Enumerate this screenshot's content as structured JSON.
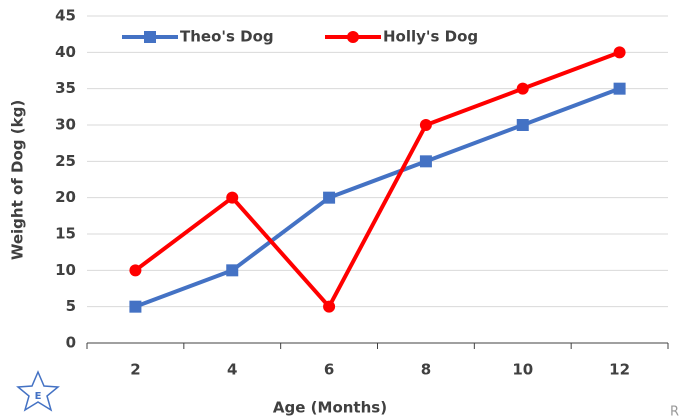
{
  "chart_data": {
    "type": "line",
    "x_label": "Age (Months)",
    "y_label": "Weight of Dog (kg)",
    "categories": [
      "2",
      "4",
      "6",
      "8",
      "10",
      "12"
    ],
    "series": [
      {
        "name": "Theo's Dog",
        "color": "#4472c4",
        "marker": "square",
        "values": [
          5,
          10,
          20,
          25,
          30,
          35
        ]
      },
      {
        "name": "Holly's Dog",
        "color": "#ff0000",
        "marker": "circle",
        "values": [
          10,
          20,
          5,
          30,
          35,
          40
        ]
      }
    ],
    "ylim": [
      0,
      45
    ],
    "yticks": [
      0,
      5,
      10,
      15,
      20,
      25,
      30,
      35,
      40,
      45
    ],
    "grid": true,
    "legend": "top"
  },
  "badge": "E",
  "corner_mark": "R"
}
